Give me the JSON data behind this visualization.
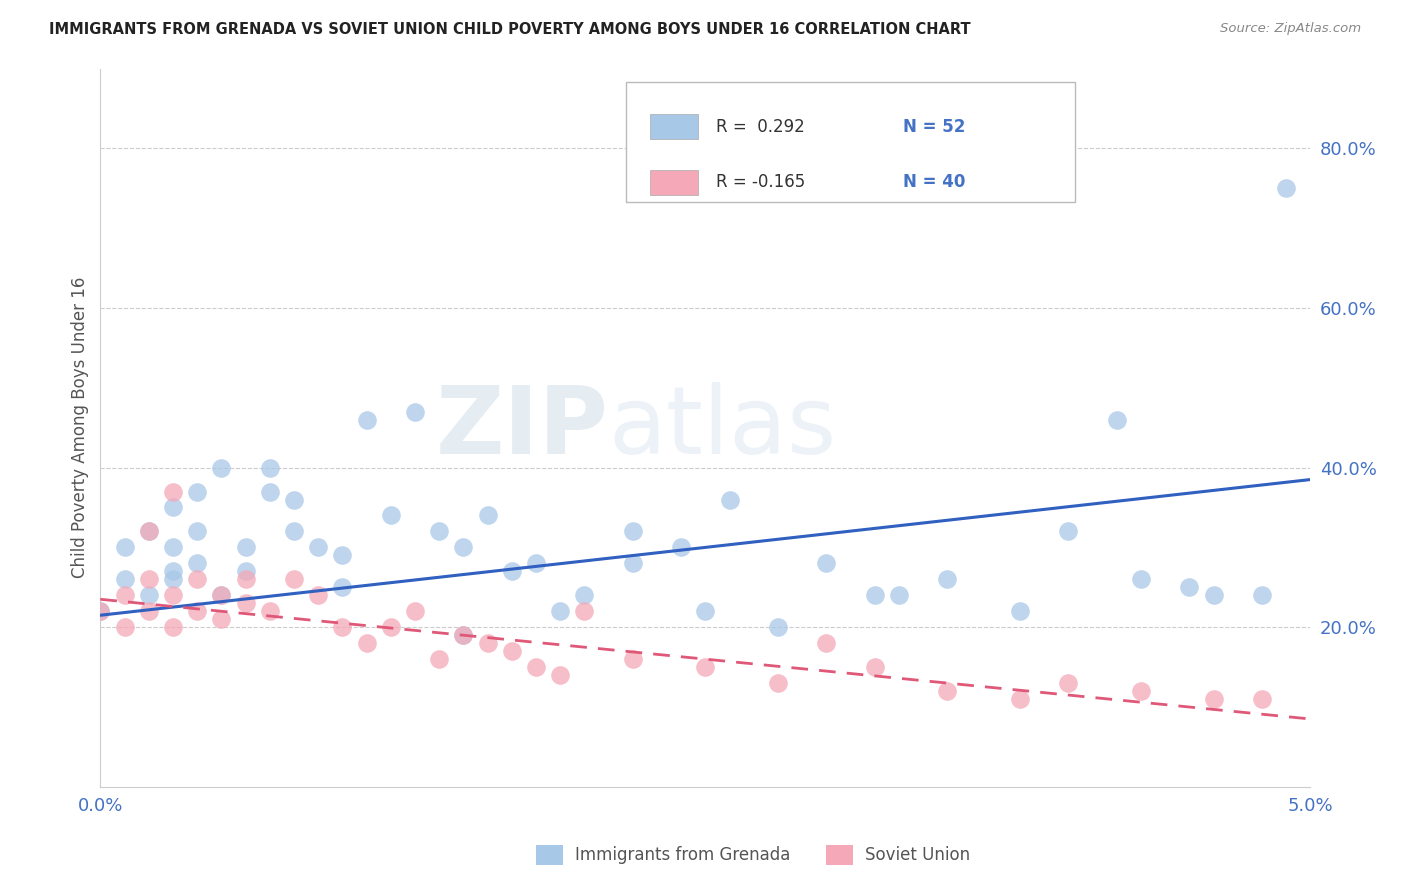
{
  "title": "IMMIGRANTS FROM GRENADA VS SOVIET UNION CHILD POVERTY AMONG BOYS UNDER 16 CORRELATION CHART",
  "source": "Source: ZipAtlas.com",
  "xlabel_grenada": "Immigrants from Grenada",
  "xlabel_soviet": "Soviet Union",
  "ylabel": "Child Poverty Among Boys Under 16",
  "legend_r_grenada": "R =  0.292",
  "legend_n_grenada": "N = 52",
  "legend_r_soviet": "R = -0.165",
  "legend_n_soviet": "N = 40",
  "color_grenada": "#a8c8e8",
  "color_soviet": "#f4a8b8",
  "line_color_grenada": "#3060c0",
  "line_color_soviet": "#e05878",
  "watermark_zip": "ZIP",
  "watermark_atlas": "atlas",
  "grenada_x": [
    0.0,
    0.001,
    0.001,
    0.002,
    0.002,
    0.003,
    0.003,
    0.003,
    0.004,
    0.004,
    0.004,
    0.005,
    0.005,
    0.006,
    0.006,
    0.007,
    0.007,
    0.008,
    0.008,
    0.009,
    0.01,
    0.01,
    0.011,
    0.012,
    0.013,
    0.014,
    0.015,
    0.016,
    0.018,
    0.02,
    0.022,
    0.024,
    0.026,
    0.03,
    0.032,
    0.035,
    0.04,
    0.042,
    0.045,
    0.003,
    0.025,
    0.028,
    0.033,
    0.038,
    0.043,
    0.048,
    0.022,
    0.019,
    0.017,
    0.015,
    0.046,
    0.049
  ],
  "grenada_y": [
    0.22,
    0.26,
    0.3,
    0.24,
    0.32,
    0.26,
    0.3,
    0.35,
    0.37,
    0.28,
    0.32,
    0.4,
    0.24,
    0.27,
    0.3,
    0.37,
    0.4,
    0.32,
    0.36,
    0.3,
    0.25,
    0.29,
    0.46,
    0.34,
    0.47,
    0.32,
    0.3,
    0.34,
    0.28,
    0.24,
    0.32,
    0.3,
    0.36,
    0.28,
    0.24,
    0.26,
    0.32,
    0.46,
    0.25,
    0.27,
    0.22,
    0.2,
    0.24,
    0.22,
    0.26,
    0.24,
    0.28,
    0.22,
    0.27,
    0.19,
    0.24,
    0.75
  ],
  "soviet_x": [
    0.0,
    0.001,
    0.001,
    0.002,
    0.002,
    0.003,
    0.003,
    0.004,
    0.004,
    0.005,
    0.005,
    0.006,
    0.006,
    0.007,
    0.008,
    0.009,
    0.01,
    0.011,
    0.012,
    0.013,
    0.014,
    0.015,
    0.016,
    0.017,
    0.018,
    0.019,
    0.02,
    0.022,
    0.025,
    0.028,
    0.03,
    0.032,
    0.035,
    0.038,
    0.04,
    0.043,
    0.046,
    0.002,
    0.003,
    0.048
  ],
  "soviet_y": [
    0.22,
    0.24,
    0.2,
    0.26,
    0.22,
    0.24,
    0.2,
    0.26,
    0.22,
    0.24,
    0.21,
    0.26,
    0.23,
    0.22,
    0.26,
    0.24,
    0.2,
    0.18,
    0.2,
    0.22,
    0.16,
    0.19,
    0.18,
    0.17,
    0.15,
    0.14,
    0.22,
    0.16,
    0.15,
    0.13,
    0.18,
    0.15,
    0.12,
    0.11,
    0.13,
    0.12,
    0.11,
    0.32,
    0.37,
    0.11
  ],
  "xlim": [
    0.0,
    0.05
  ],
  "ylim": [
    0.0,
    0.9
  ],
  "grenada_line_x": [
    0.0,
    0.05
  ],
  "grenada_line_y": [
    0.215,
    0.385
  ],
  "soviet_line_x": [
    0.0,
    0.05
  ],
  "soviet_line_y": [
    0.235,
    0.085
  ],
  "yticks": [
    0.2,
    0.4,
    0.6,
    0.8
  ],
  "ytick_labels": [
    "20.0%",
    "40.0%",
    "60.0%",
    "80.0%"
  ],
  "xticks": [
    0.0,
    0.05
  ],
  "xtick_labels": [
    "0.0%",
    "5.0%"
  ]
}
